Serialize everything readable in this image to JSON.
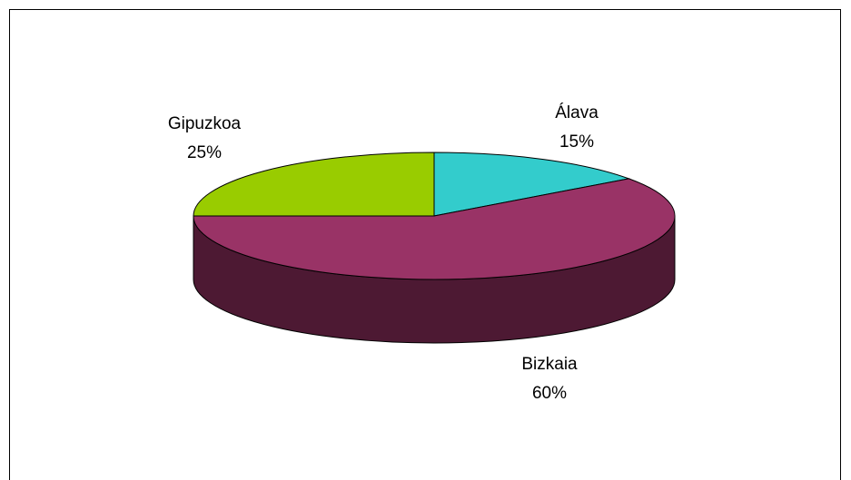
{
  "chart_data": {
    "type": "pie3d",
    "categories": [
      "Álava",
      "Bizkaia",
      "Gipuzkoa"
    ],
    "values": [
      15,
      60,
      25
    ],
    "value_labels": [
      "15%",
      "60%",
      "25%"
    ],
    "colors": [
      "#33CCCC",
      "#993366",
      "#99CC00"
    ],
    "side_colors": [
      "#1A6666",
      "#4D1933",
      "#4D6600"
    ]
  }
}
